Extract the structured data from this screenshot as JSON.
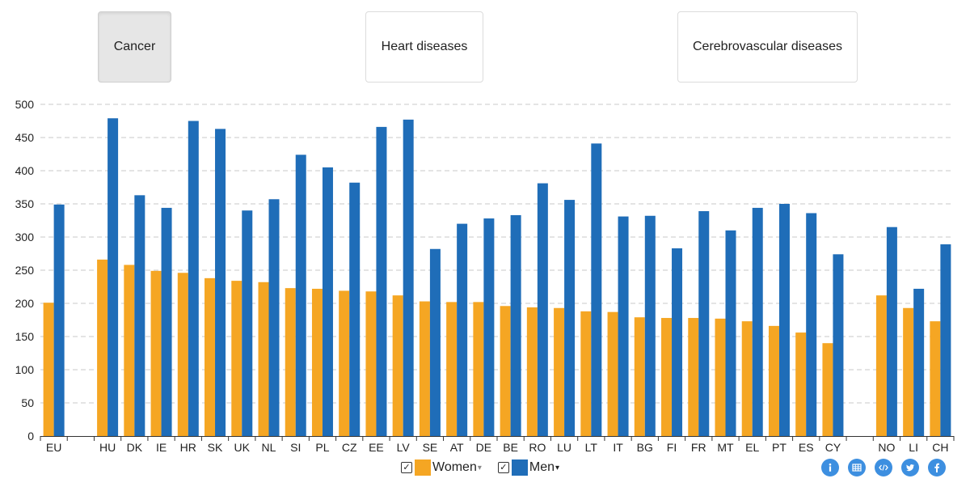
{
  "tabs": [
    {
      "label": "Cancer",
      "active": true
    },
    {
      "label": "Heart diseases",
      "active": false
    },
    {
      "label": "Cerebrovascular diseases",
      "active": false
    }
  ],
  "colors": {
    "women": "#f5a623",
    "men": "#1f6db8",
    "grid": "#c8c8c8"
  },
  "legend": {
    "women_label": "Women",
    "men_label": "Men",
    "check_glyph": "✓",
    "caret_glyph": "▾"
  },
  "share_icons": [
    "info-icon",
    "table-icon",
    "embed-icon",
    "twitter-icon",
    "facebook-icon"
  ],
  "chart_data": {
    "type": "bar",
    "title": "",
    "xlabel": "",
    "ylabel": "",
    "ylim": [
      0,
      500
    ],
    "yticks": [
      0,
      50,
      100,
      150,
      200,
      250,
      300,
      350,
      400,
      450,
      500
    ],
    "grid": true,
    "legend_position": "bottom-center",
    "categories": [
      "EU",
      "",
      "HU",
      "DK",
      "IE",
      "HR",
      "SK",
      "UK",
      "NL",
      "SI",
      "PL",
      "CZ",
      "EE",
      "LV",
      "SE",
      "AT",
      "DE",
      "BE",
      "RO",
      "LU",
      "LT",
      "IT",
      "BG",
      "FI",
      "FR",
      "MT",
      "EL",
      "PT",
      "ES",
      "CY",
      "",
      "NO",
      "LI",
      "CH"
    ],
    "series": [
      {
        "name": "Women",
        "values": [
          201,
          null,
          266,
          258,
          249,
          246,
          238,
          234,
          232,
          223,
          222,
          219,
          218,
          212,
          203,
          202,
          202,
          196,
          194,
          193,
          188,
          187,
          179,
          178,
          178,
          177,
          173,
          166,
          156,
          140,
          null,
          212,
          193,
          173
        ]
      },
      {
        "name": "Men",
        "values": [
          349,
          null,
          479,
          363,
          344,
          475,
          463,
          340,
          357,
          424,
          405,
          382,
          466,
          477,
          282,
          320,
          328,
          333,
          381,
          356,
          441,
          331,
          332,
          283,
          339,
          310,
          344,
          350,
          336,
          274,
          null,
          315,
          222,
          289
        ]
      }
    ]
  }
}
